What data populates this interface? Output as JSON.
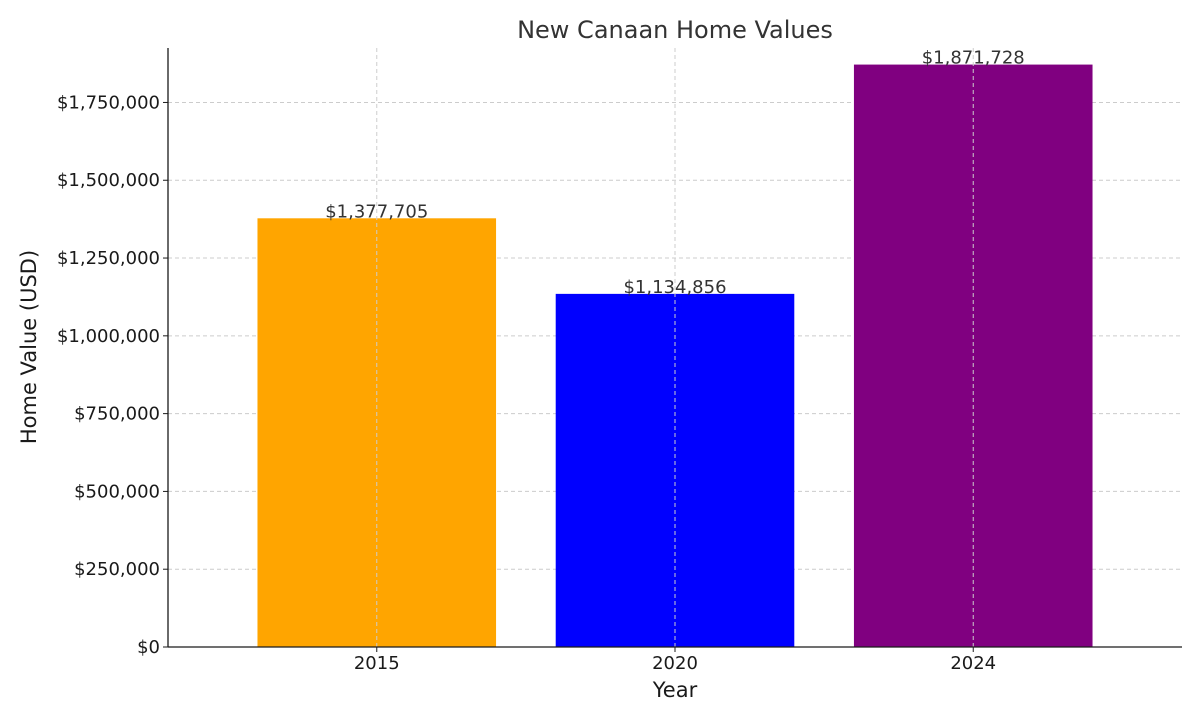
{
  "chart_data": {
    "type": "bar",
    "title": "New Canaan Home Values",
    "xlabel": "Year",
    "ylabel": "Home Value (USD)",
    "categories": [
      "2015",
      "2020",
      "2024"
    ],
    "values": [
      1377705,
      1134856,
      1871728
    ],
    "value_labels": [
      "$1,377,705",
      "$1,134,856",
      "$1,871,728"
    ],
    "colors": [
      "#FFA500",
      "#0000FF",
      "#800080"
    ],
    "ylim": [
      0,
      1925000
    ],
    "y_ticks": [
      0,
      250000,
      500000,
      750000,
      1000000,
      1250000,
      1500000,
      1750000
    ],
    "y_tick_labels": [
      "$0",
      "$250,000",
      "$500,000",
      "$750,000",
      "$1,000,000",
      "$1,250,000",
      "$1,500,000",
      "$1,750,000"
    ],
    "grid": true
  }
}
